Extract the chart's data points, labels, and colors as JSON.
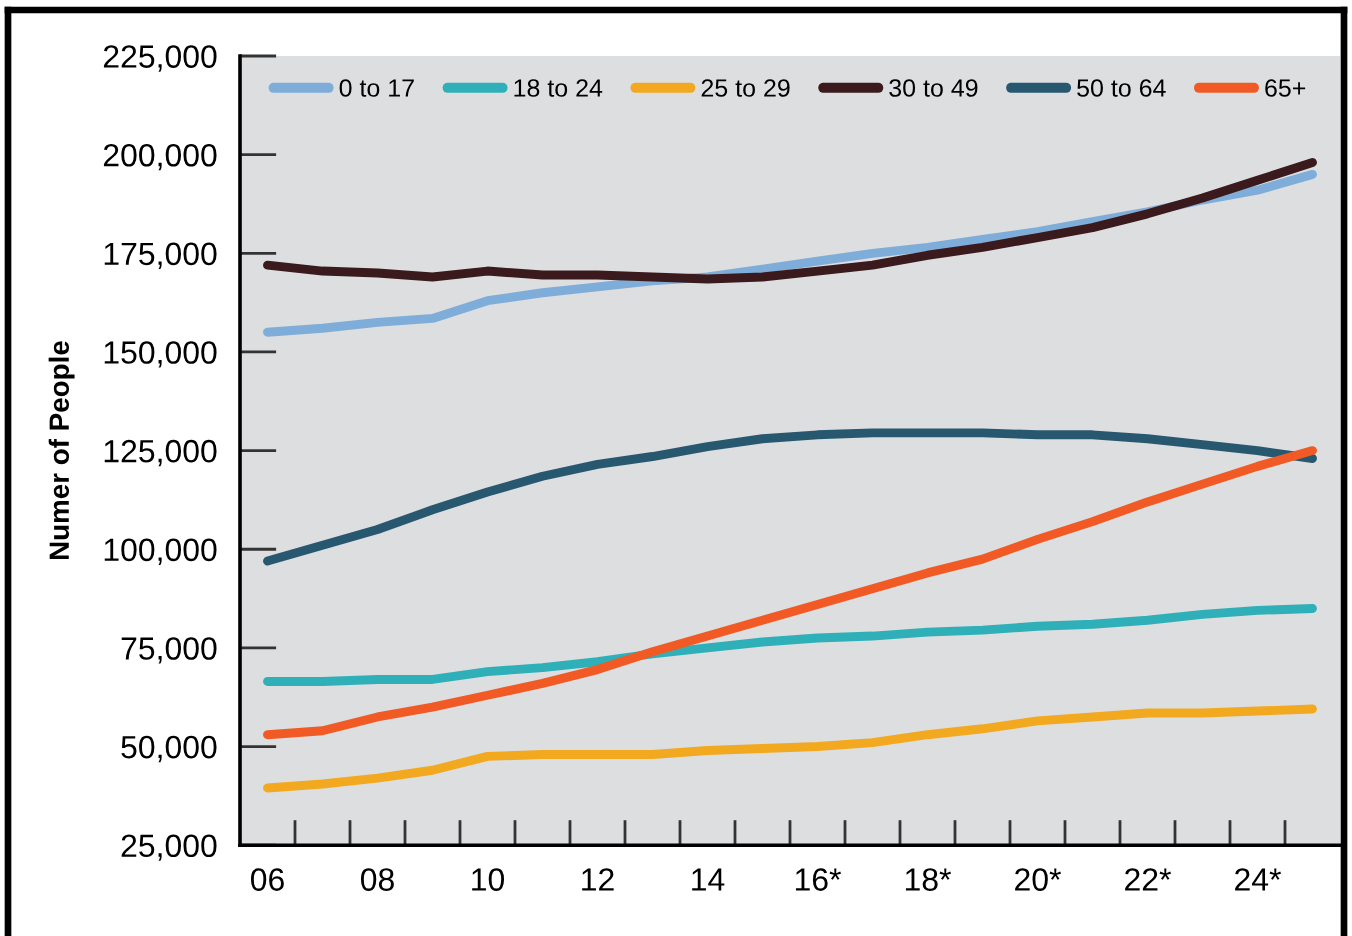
{
  "chart_data": {
    "type": "line",
    "categories": [
      "06",
      null,
      "08",
      null,
      "10",
      null,
      "12",
      null,
      "14",
      null,
      "16*",
      null,
      "18*",
      null,
      "20*",
      null,
      "22*",
      null,
      "24*",
      null
    ],
    "series": [
      {
        "name": "0 to 17",
        "color": "#7fadd9",
        "values": [
          155000,
          156000,
          157500,
          158500,
          163000,
          165000,
          166500,
          168000,
          169000,
          171000,
          173000,
          175000,
          176500,
          178500,
          180500,
          183000,
          185500,
          188500,
          191000,
          195000
        ]
      },
      {
        "name": "18 to 24",
        "color": "#2fb0b8",
        "values": [
          66500,
          66500,
          67000,
          67000,
          69000,
          70000,
          71500,
          73500,
          75000,
          76500,
          77500,
          78000,
          79000,
          79500,
          80500,
          81000,
          82000,
          83500,
          84500,
          85000
        ]
      },
      {
        "name": "25 to 29",
        "color": "#f2a91f",
        "values": [
          39500,
          40500,
          42000,
          44000,
          47500,
          48000,
          48000,
          48000,
          49000,
          49500,
          50000,
          51000,
          53000,
          54500,
          56500,
          57500,
          58500,
          58500,
          59000,
          59500
        ]
      },
      {
        "name": "30 to 49",
        "color": "#3a1a1c",
        "values": [
          172000,
          170500,
          170000,
          169000,
          170500,
          169500,
          169500,
          169000,
          168500,
          169000,
          170500,
          172000,
          174500,
          176500,
          179000,
          181500,
          185000,
          189000,
          193500,
          198000
        ]
      },
      {
        "name": "50 to 64",
        "color": "#285870",
        "values": [
          97000,
          101000,
          105000,
          110000,
          114500,
          118500,
          121500,
          123500,
          126000,
          128000,
          129000,
          129500,
          129500,
          129500,
          129000,
          129000,
          128000,
          126500,
          125000,
          123000
        ]
      },
      {
        "name": "65+",
        "color": "#f15a24",
        "values": [
          53000,
          54000,
          57500,
          60000,
          63000,
          66000,
          69500,
          74000,
          78000,
          82000,
          86000,
          90000,
          94000,
          97500,
          102500,
          107000,
          112000,
          116500,
          121000,
          125000
        ]
      }
    ],
    "ylabel": "Numer of People",
    "ylim": [
      25000,
      225000
    ],
    "yticks": [
      {
        "value": 25000,
        "label": "25,000"
      },
      {
        "value": 50000,
        "label": "50,000"
      },
      {
        "value": 75000,
        "label": "75,000"
      },
      {
        "value": 100000,
        "label": "100,000"
      },
      {
        "value": 125000,
        "label": "125,000"
      },
      {
        "value": 150000,
        "label": "150,000"
      },
      {
        "value": 175000,
        "label": "175,000"
      },
      {
        "value": 200000,
        "label": "200,000"
      },
      {
        "value": 225000,
        "label": "225,000"
      }
    ],
    "legend": "top",
    "line_style": "solid"
  }
}
